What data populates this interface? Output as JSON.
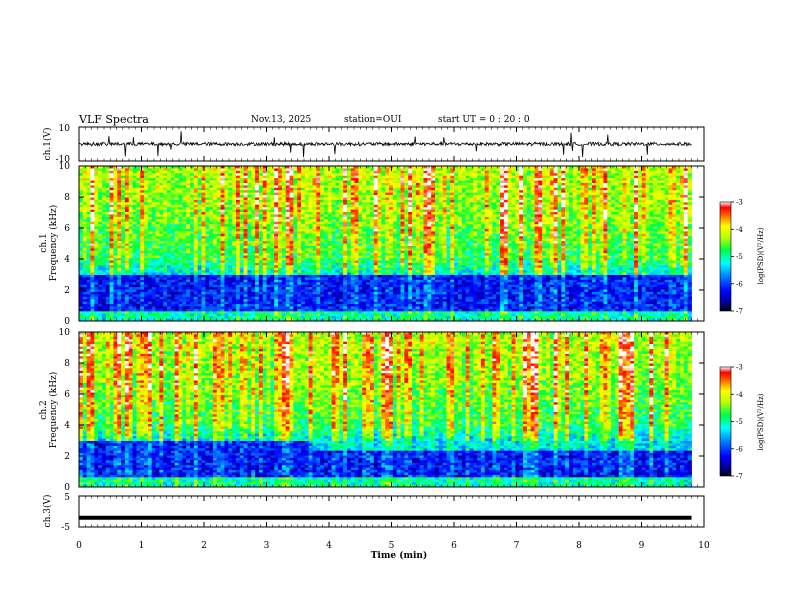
{
  "header": {
    "title": "VLF Spectra",
    "date": "Nov.13, 2025",
    "station": "station=OUI",
    "start": "start  UT =   0 : 20 : 0"
  },
  "chart_data": [
    {
      "type": "line",
      "name": "ch1-waveform",
      "ylabel": "ch.1(V)",
      "ylim": [
        -10,
        10
      ],
      "yticks": [
        "10",
        "-10"
      ],
      "baseline": 0,
      "description_values": {
        "noise_amplitude": 1,
        "spike_amplitude": 8
      }
    },
    {
      "type": "heatmap",
      "name": "ch1-spectrogram",
      "ylabel_line1": "ch.1",
      "ylabel_line2": "Frequency (kHz)",
      "ylim": [
        0,
        10
      ],
      "yticks": [
        "0",
        "2",
        "4",
        "6",
        "8",
        "10"
      ],
      "xlim": [
        0,
        10
      ],
      "data_end_min": 9.8,
      "colorbar": {
        "min": -7,
        "max": -3,
        "ticks": [
          "-3",
          "-4",
          "-5",
          "-6",
          "-7"
        ],
        "label": "log(PSD)(V²/Hz)"
      }
    },
    {
      "type": "heatmap",
      "name": "ch2-spectrogram",
      "ylabel_line1": "ch.2",
      "ylabel_line2": "Frequency (kHz)",
      "ylim": [
        0,
        10
      ],
      "yticks": [
        "0",
        "2",
        "4",
        "6",
        "8",
        "10"
      ],
      "xlim": [
        0,
        10
      ],
      "data_end_min": 9.8,
      "colorbar": {
        "min": -7,
        "max": -3,
        "ticks": [
          "-3",
          "-4",
          "-5",
          "-6",
          "-7"
        ],
        "label": "log(PSD)(V²/Hz)"
      }
    },
    {
      "type": "line",
      "name": "ch3-waveform",
      "ylabel": "ch.3(V)",
      "ylim": [
        -5,
        5
      ],
      "yticks": [
        "5",
        "-5"
      ],
      "constant_value": -2,
      "xlabel": "Time  (min)",
      "xticks": [
        "0",
        "1",
        "2",
        "3",
        "4",
        "5",
        "6",
        "7",
        "8",
        "9",
        "10"
      ]
    }
  ]
}
